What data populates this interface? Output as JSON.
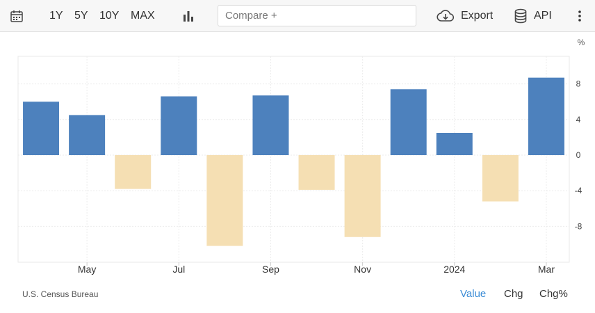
{
  "toolbar": {
    "ranges": [
      "1Y",
      "5Y",
      "10Y",
      "MAX"
    ],
    "compare_placeholder": "Compare +",
    "export_label": "Export",
    "api_label": "API",
    "icons": {
      "calendar": "calendar-icon",
      "chart_type": "bar-chart-icon",
      "export": "cloud-download-icon",
      "api": "database-icon",
      "more": "vertical-ellipsis-icon"
    }
  },
  "chart_data": {
    "type": "bar",
    "unit": "%",
    "x": [
      "2023-04",
      "2023-05",
      "2023-06",
      "2023-07",
      "2023-08",
      "2023-09",
      "2023-10",
      "2023-11",
      "2023-12",
      "2024-01",
      "2024-02",
      "2024-03"
    ],
    "values": [
      6.0,
      4.5,
      -3.8,
      6.6,
      -10.2,
      6.7,
      -3.9,
      -9.2,
      7.4,
      2.5,
      -5.2,
      8.7
    ],
    "x_tick_labels": [
      {
        "label": "May",
        "x": "2023-05"
      },
      {
        "label": "Jul",
        "x": "2023-07"
      },
      {
        "label": "Sep",
        "x": "2023-09"
      },
      {
        "label": "Nov",
        "x": "2023-11"
      },
      {
        "label": "2024",
        "x": "2024-01"
      },
      {
        "label": "Mar",
        "x": "2024-03"
      }
    ],
    "y_ticks": [
      8,
      4,
      0,
      -4,
      -8
    ],
    "ylim": [
      -12,
      11
    ],
    "grid": true,
    "y_axis_side": "right",
    "colors": {
      "positive": "#4d81bd",
      "negative": "#f5dfb3"
    }
  },
  "footer": {
    "source": "U.S. Census Bureau",
    "views": [
      "Value",
      "Chg",
      "Chg%"
    ],
    "active_view": "Value",
    "active_color": "#3c8dd6"
  }
}
